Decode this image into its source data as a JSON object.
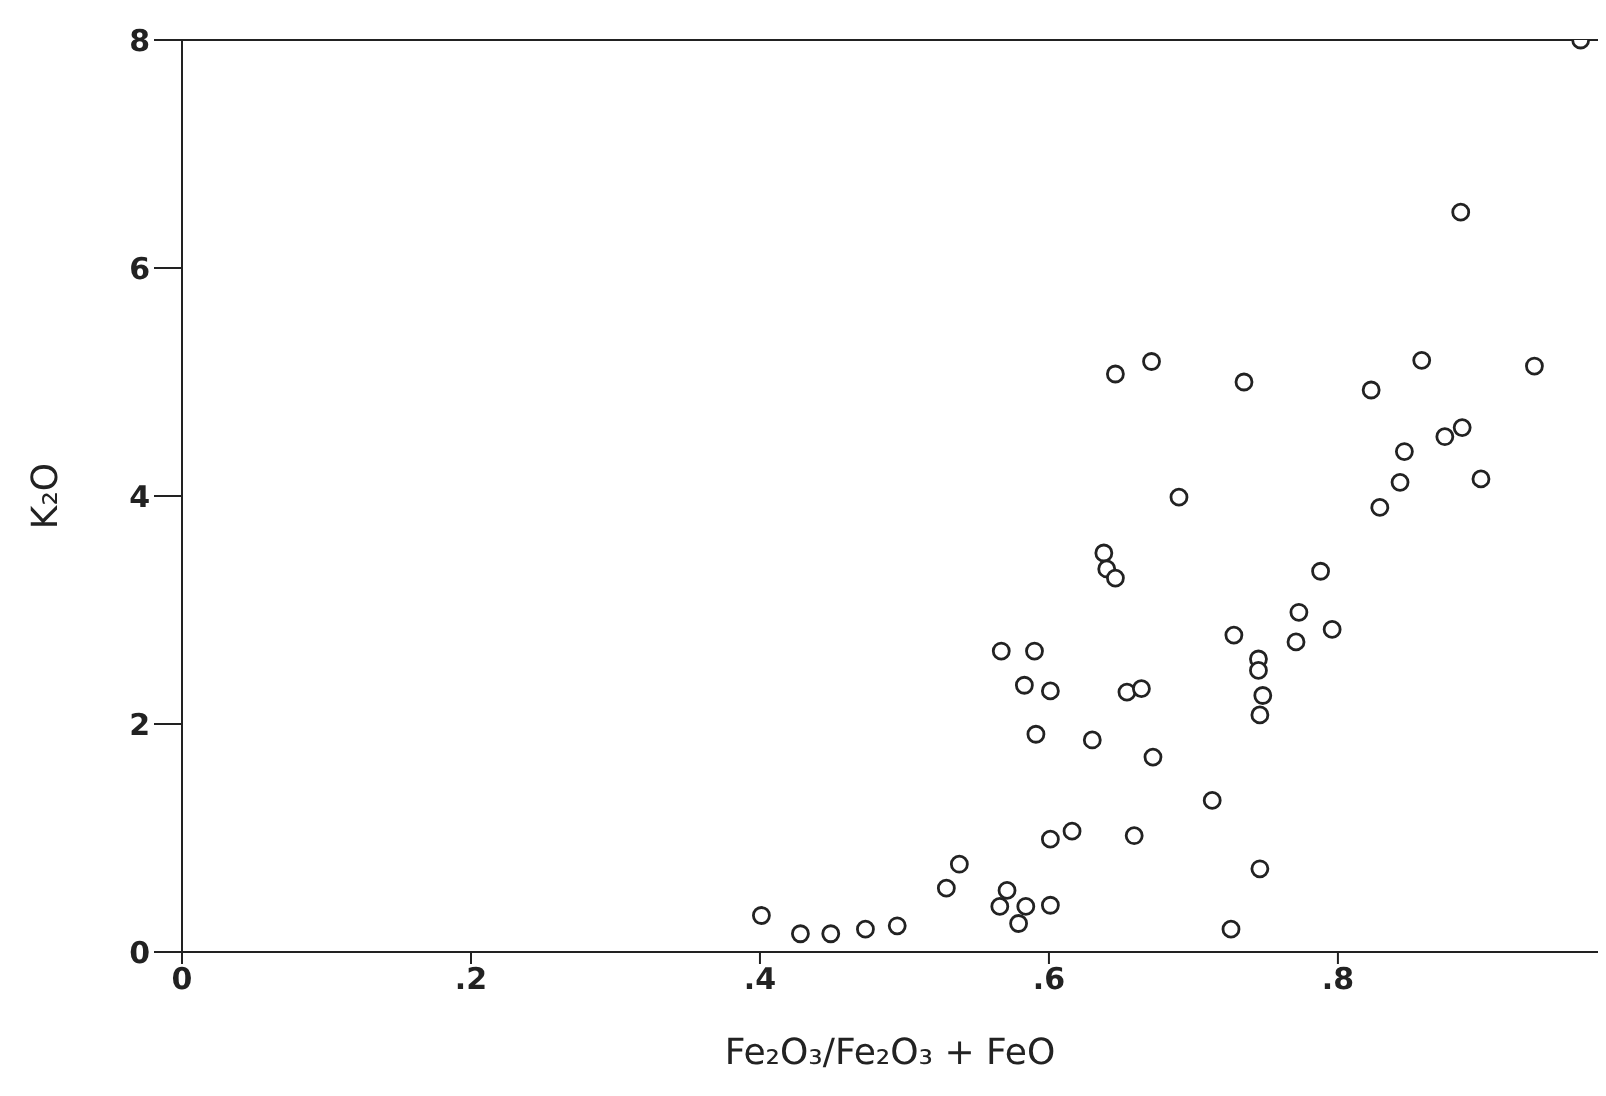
{
  "chart_data": {
    "type": "scatter",
    "xlabel": "Fe₂O₃/Fe₂O₃ + FeO",
    "ylabel": "K₂O",
    "x": [
      0.401,
      0.428,
      0.449,
      0.473,
      0.495,
      0.529,
      0.538,
      0.566,
      0.567,
      0.571,
      0.579,
      0.583,
      0.584,
      0.59,
      0.591,
      0.601,
      0.601,
      0.601,
      0.616,
      0.63,
      0.638,
      0.64,
      0.646,
      0.646,
      0.654,
      0.659,
      0.664,
      0.671,
      0.672,
      0.69,
      0.713,
      0.726,
      0.728,
      0.735,
      0.745,
      0.745,
      0.746,
      0.746,
      0.748,
      0.771,
      0.773,
      0.788,
      0.796,
      0.823,
      0.829,
      0.843,
      0.846,
      0.858,
      0.874,
      0.885,
      0.886,
      0.899,
      0.936,
      0.968
    ],
    "values": [
      0.32,
      0.16,
      0.16,
      0.2,
      0.23,
      0.56,
      0.77,
      0.4,
      2.64,
      0.54,
      0.25,
      2.34,
      0.4,
      2.64,
      1.91,
      2.29,
      0.99,
      0.41,
      1.06,
      1.86,
      3.5,
      3.36,
      3.28,
      5.07,
      2.28,
      1.02,
      2.31,
      5.18,
      1.71,
      3.99,
      1.33,
      0.2,
      2.78,
      5.0,
      2.57,
      2.47,
      2.08,
      0.73,
      2.25,
      2.72,
      2.98,
      3.34,
      2.83,
      4.93,
      3.9,
      4.12,
      4.39,
      5.19,
      4.52,
      6.49,
      4.6,
      4.15,
      5.14,
      8.0
    ],
    "color": "#222222",
    "marker": "circle",
    "xlim": [
      0,
      0.98
    ],
    "xticks": [
      0,
      {
        "value": 0.2,
        "label": ".2"
      },
      {
        "value": 0.4,
        "label": ".4"
      },
      {
        "value": 0.6,
        "label": ".6"
      },
      {
        "value": 0.8,
        "label": ".8"
      }
    ],
    "ylim": [
      0,
      8
    ],
    "yticks": [
      0,
      2,
      4,
      6,
      8
    ],
    "grid": false,
    "legend": false
  }
}
